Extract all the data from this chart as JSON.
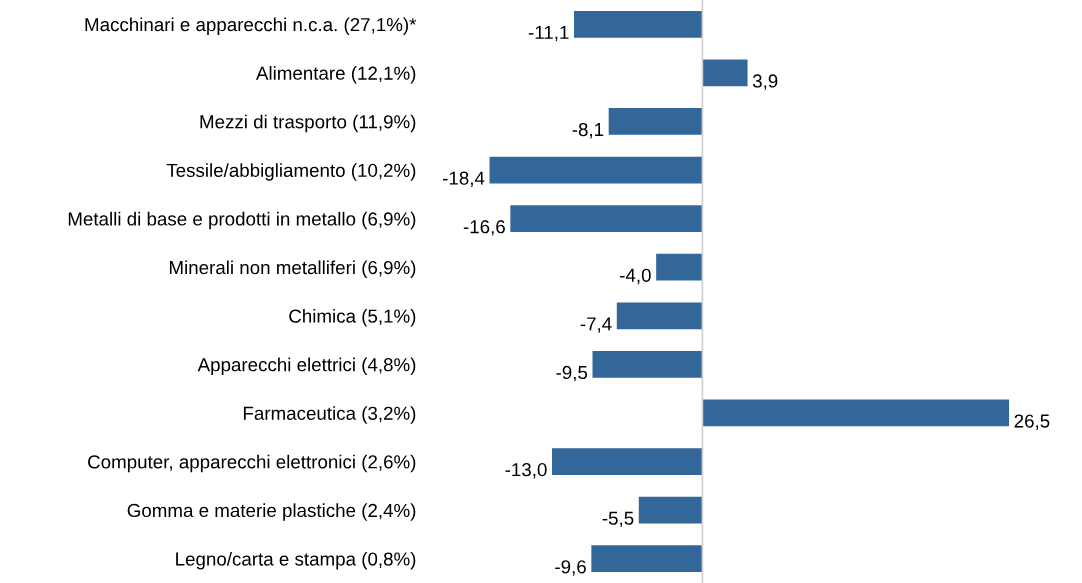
{
  "chart_data": {
    "type": "bar",
    "orientation": "horizontal",
    "categories": [
      "Macchinari e apparecchi n.c.a. (27,1%)*",
      "Alimentare (12,1%)",
      "Mezzi di trasporto (11,9%)",
      "Tessile/abbigliamento (10,2%)",
      "Metalli di base e prodotti in metallo (6,9%)",
      "Minerali non metalliferi (6,9%)",
      "Chimica (5,1%)",
      "Apparecchi elettrici (4,8%)",
      "Farmaceutica (3,2%)",
      "Computer, apparecchi elettronici (2,6%)",
      "Gomma e materie plastiche (2,4%)",
      "Legno/carta e stampa (0,8%)"
    ],
    "values": [
      -11.1,
      3.9,
      -8.1,
      -18.4,
      -16.6,
      -4.0,
      -7.4,
      -9.5,
      26.5,
      -13.0,
      -5.5,
      -9.6
    ],
    "value_labels": [
      "-11,1",
      "3,9",
      "-8,1",
      "-18,4",
      "-16,6",
      "-4,0",
      "-7,4",
      "-9,5",
      "26,5",
      "-13,0",
      "-5,5",
      "-9,6"
    ],
    "color": "#336699",
    "grid": false,
    "legend": false
  }
}
